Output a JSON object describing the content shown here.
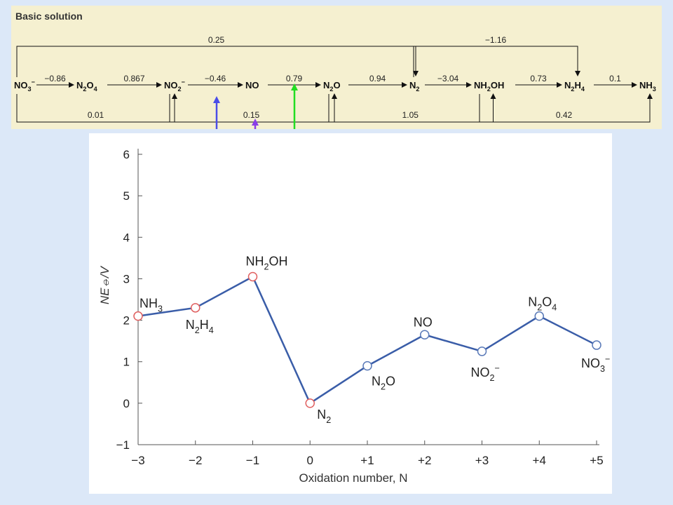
{
  "latimer": {
    "title": "Basic solution",
    "species": [
      {
        "id": "no3",
        "base": "NO",
        "sub": "3",
        "sup": "−"
      },
      {
        "id": "n2o4",
        "base": "N",
        "sub": "2",
        "base2": "O",
        "sub2": "4"
      },
      {
        "id": "no2m",
        "base": "NO",
        "sub": "2",
        "sup": "−"
      },
      {
        "id": "no",
        "base": "NO"
      },
      {
        "id": "n2o",
        "base": "N",
        "sub": "2",
        "base2": "O"
      },
      {
        "id": "n2",
        "base": "N",
        "sub": "2"
      },
      {
        "id": "nh2oh",
        "base": "NH",
        "sub": "2",
        "base2": "OH"
      },
      {
        "id": "n2h4",
        "base": "N",
        "sub": "2",
        "base2": "H",
        "sub2": "4"
      },
      {
        "id": "nh3",
        "base": "NH",
        "sub": "3"
      }
    ],
    "steps": [
      "−0.86",
      "0.867",
      "−0.46",
      "0.79",
      "0.94",
      "−3.04",
      "0.73",
      "0.1"
    ],
    "arcs": [
      {
        "from": "no3",
        "to": "n2",
        "value": "0.25",
        "side": "top"
      },
      {
        "from": "n2",
        "to": "n2h4",
        "value": "−1.16",
        "side": "top"
      },
      {
        "from": "no3",
        "to": "no2m",
        "value": "0.01",
        "side": "bottom"
      },
      {
        "from": "no2m",
        "to": "n2o",
        "value": "0.15",
        "side": "bottom"
      },
      {
        "from": "n2o",
        "to": "nh2oh",
        "value": "1.05",
        "side": "bottom"
      },
      {
        "from": "nh2oh",
        "to": "nh3",
        "value": "0.42",
        "side": "bottom"
      }
    ],
    "colors": {
      "blue_arrow": "#4a4de8",
      "violet_arrow": "#8a3ee8",
      "green_arrow": "#22dd22"
    }
  },
  "chart_data": {
    "type": "line",
    "xlabel": "Oxidation number, N",
    "ylabel": "NE⦵/V",
    "x_ticks": [
      "−3",
      "−2",
      "−1",
      "0",
      "+1",
      "+2",
      "+3",
      "+4",
      "+5"
    ],
    "y_ticks": [
      "−1",
      "0",
      "1",
      "2",
      "3",
      "4",
      "5",
      "6"
    ],
    "xlim": [
      -3,
      5
    ],
    "ylim": [
      -1,
      6
    ],
    "line_color": "#3a5da8",
    "points": [
      {
        "x": -3,
        "y": 2.1,
        "label": "NH3",
        "label_html": {
          "base": "NH",
          "sub": "3"
        },
        "marker_color": "#e06060"
      },
      {
        "x": -2,
        "y": 2.3,
        "label": "N2H4",
        "label_html": {
          "base": "N",
          "sub": "2",
          "base2": "H",
          "sub2": "4"
        },
        "marker_color": "#e06060"
      },
      {
        "x": -1,
        "y": 3.05,
        "label": "NH2OH",
        "label_html": {
          "base": "NH",
          "sub": "2",
          "base2": "OH"
        },
        "marker_color": "#e06060"
      },
      {
        "x": 0,
        "y": 0,
        "label": "N2",
        "label_html": {
          "base": "N",
          "sub": "2"
        },
        "marker_color": "#e06060"
      },
      {
        "x": 1,
        "y": 0.9,
        "label": "N2O",
        "label_html": {
          "base": "N",
          "sub": "2",
          "base2": "O"
        },
        "marker_color": "#5a7ab8"
      },
      {
        "x": 2,
        "y": 1.65,
        "label": "NO",
        "label_html": {
          "base": "NO"
        },
        "marker_color": "#5a7ab8"
      },
      {
        "x": 3,
        "y": 1.25,
        "label": "NO2−",
        "label_html": {
          "base": "NO",
          "sub": "2",
          "sup": "−"
        },
        "marker_color": "#5a7ab8"
      },
      {
        "x": 4,
        "y": 2.1,
        "label": "N2O4",
        "label_html": {
          "base": "N",
          "sub": "2",
          "base2": "O",
          "sub2": "4"
        },
        "marker_color": "#5a7ab8"
      },
      {
        "x": 5,
        "y": 1.4,
        "label": "NO3−",
        "label_html": {
          "base": "NO",
          "sub": "3",
          "sup": "−"
        },
        "marker_color": "#5a7ab8"
      }
    ]
  }
}
